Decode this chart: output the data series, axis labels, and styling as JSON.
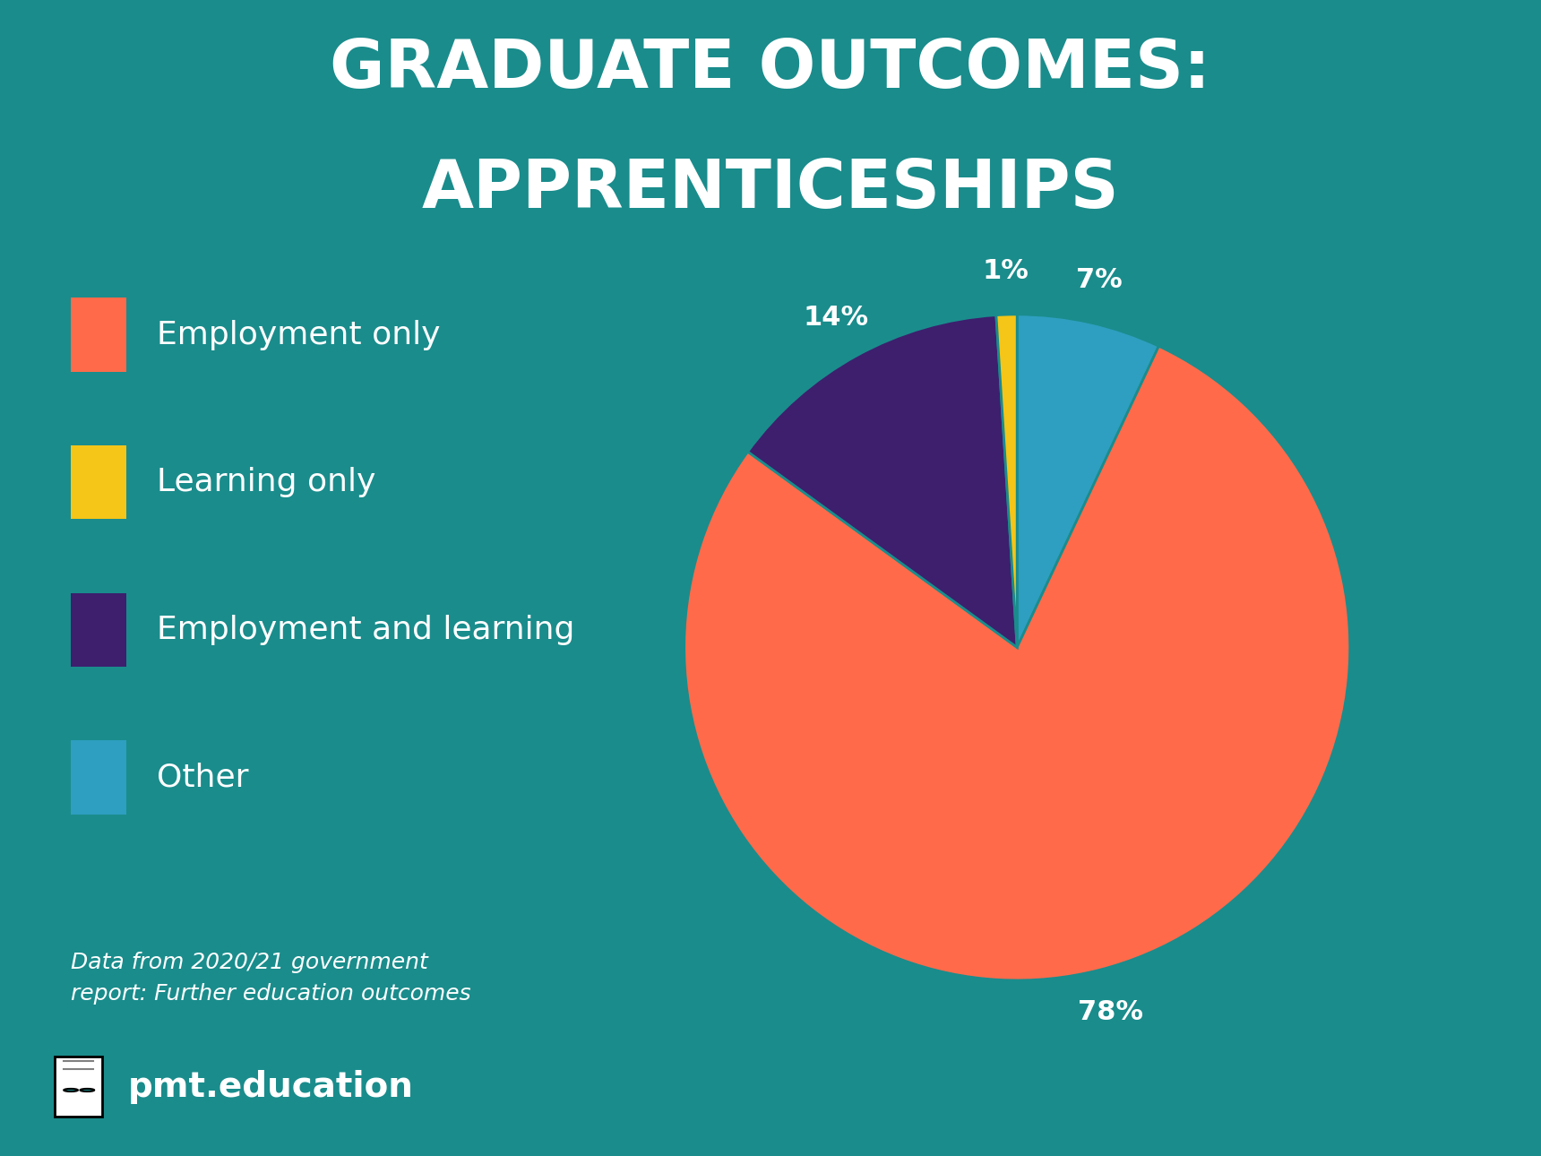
{
  "title_line1": "GRADUATE OUTCOMES:",
  "title_line2": "APPRENTICESHIPS",
  "background_color": "#1a8c8c",
  "title_color": "#ffffff",
  "reordered_slices": [
    7,
    78,
    14,
    1
  ],
  "reordered_colors": [
    "#2e9fc0",
    "#ff6b4a",
    "#3d1f6e",
    "#f5c518"
  ],
  "reordered_pcts": [
    "7%",
    "78%",
    "14%",
    "1%"
  ],
  "legend_colors": [
    "#ff6b4a",
    "#f5c518",
    "#3d1f6e",
    "#2e9fc0"
  ],
  "legend_labels": [
    "Employment only",
    "Learning only",
    "Employment and learning",
    "Other"
  ],
  "source_text": "Data from 2020/21 government\nreport: Further education outcomes",
  "brand_text": "pmt.education",
  "label_fontsize": 22,
  "legend_fontsize": 26,
  "title_fontsize": 54,
  "source_fontsize": 18,
  "brand_fontsize": 28
}
